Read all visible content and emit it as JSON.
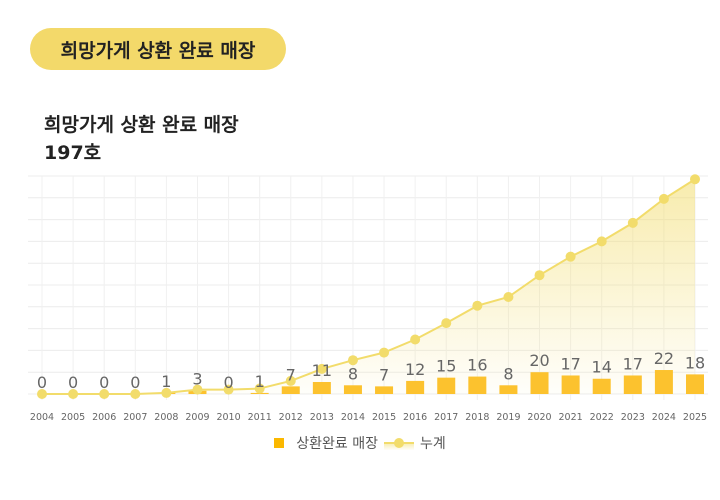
{
  "header": {
    "pill": "희망가게 상환 완료 매장",
    "title": "희망가게 상환 완료 매장",
    "total": "197호"
  },
  "chart_data": {
    "type": "bar",
    "categories": [
      "2004",
      "2005",
      "2006",
      "2007",
      "2008",
      "2009",
      "2010",
      "2011",
      "2012",
      "2013",
      "2014",
      "2015",
      "2016",
      "2017",
      "2018",
      "2019",
      "2020",
      "2021",
      "2022",
      "2023",
      "2024",
      "2025"
    ],
    "series": [
      {
        "name": "상환완료 매장",
        "type": "bar",
        "values": [
          0,
          0,
          0,
          0,
          1,
          3,
          0,
          1,
          7,
          11,
          8,
          7,
          12,
          15,
          16,
          8,
          20,
          17,
          14,
          17,
          22,
          18
        ],
        "color": "#fcc22e"
      },
      {
        "name": "누계",
        "type": "line-area",
        "values": [
          0,
          0,
          0,
          0,
          1,
          4,
          4,
          5,
          12,
          23,
          31,
          38,
          50,
          65,
          81,
          89,
          109,
          126,
          140,
          157,
          179,
          197
        ],
        "color": "#f2dc6b"
      }
    ],
    "ylim": [
      0,
      200
    ],
    "grid": true,
    "legend": "bottom"
  }
}
